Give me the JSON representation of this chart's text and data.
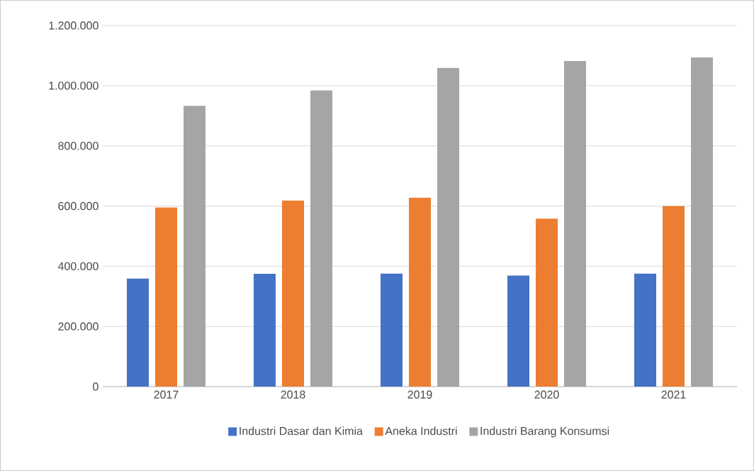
{
  "chart_data": {
    "type": "bar",
    "categories": [
      "2017",
      "2018",
      "2019",
      "2020",
      "2021"
    ],
    "series": [
      {
        "name": "Industri Dasar dan Kimia",
        "color": "#4472c4",
        "values": [
          359000,
          375000,
          376000,
          369000,
          376000
        ]
      },
      {
        "name": "Aneka Industri",
        "color": "#ed7d31",
        "values": [
          595000,
          618000,
          628000,
          558000,
          600000
        ]
      },
      {
        "name": "Industri Barang Konsumsi",
        "color": "#a5a5a5",
        "values": [
          933000,
          984000,
          1059000,
          1082000,
          1094000
        ]
      }
    ],
    "ylim": [
      0,
      1200000
    ],
    "yticks": [
      {
        "value": 0,
        "label": "0"
      },
      {
        "value": 200000,
        "label": "200.000"
      },
      {
        "value": 400000,
        "label": "400.000"
      },
      {
        "value": 600000,
        "label": "600.000"
      },
      {
        "value": 800000,
        "label": "800.000"
      },
      {
        "value": 1000000,
        "label": "1.000.000"
      },
      {
        "value": 1200000,
        "label": "1.200.000"
      }
    ],
    "grid": "y",
    "legend": "bottom"
  }
}
